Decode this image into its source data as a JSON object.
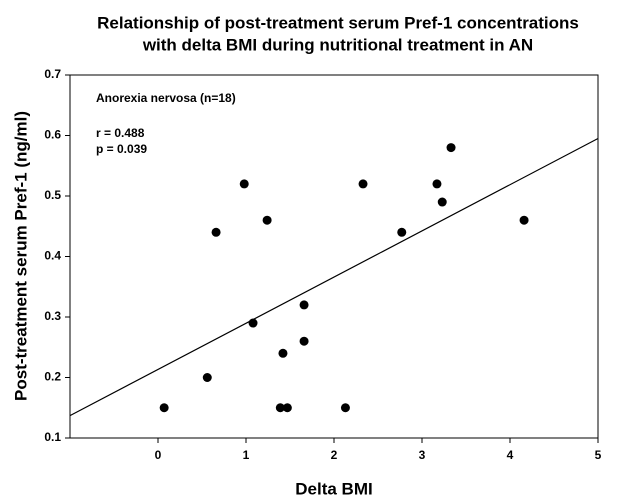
{
  "chart_data": {
    "type": "scatter",
    "title": [
      "Relationship of post-treatment serum Pref-1 concentrations",
      "with delta BMI during nutritional treatment in AN"
    ],
    "x_label": "Delta BMI",
    "y_label": "Post-treatment serum Pref-1 (ng/ml)",
    "annotations": [
      "Anorexia nervosa (n=18)",
      "r = 0.488",
      "p = 0.039"
    ],
    "color": "#000000",
    "x": [
      0.07,
      0.56,
      0.66,
      0.98,
      1.08,
      1.24,
      1.39,
      1.47,
      1.42,
      1.66,
      1.66,
      2.13,
      2.33,
      2.77,
      3.17,
      3.23,
      3.33,
      4.16
    ],
    "values": [
      0.15,
      0.2,
      0.44,
      0.52,
      0.29,
      0.46,
      0.15,
      0.15,
      0.24,
      0.26,
      0.32,
      0.15,
      0.52,
      0.44,
      0.52,
      0.49,
      0.58,
      0.46
    ],
    "regression_line": {
      "x": [
        -1,
        5
      ],
      "y": [
        0.137,
        0.595
      ]
    },
    "xlim": [
      -1,
      5
    ],
    "xticks": [
      0,
      1,
      2,
      3,
      4,
      5
    ],
    "ylim": [
      0.1,
      0.7
    ],
    "yticks": [
      0.1,
      0.2,
      0.3,
      0.4,
      0.5,
      0.6,
      0.7
    ]
  }
}
